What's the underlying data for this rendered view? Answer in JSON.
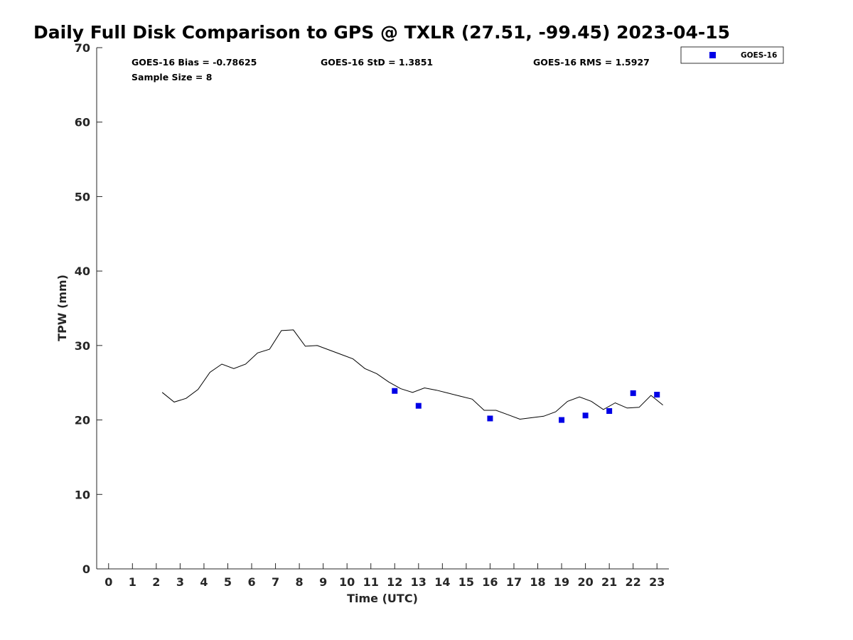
{
  "chart_data": {
    "type": "scatter",
    "title": "Daily Full Disk Comparison to GPS @ TXLR (27.51, -99.45) 2023-04-15",
    "xlabel": "Time (UTC)",
    "ylabel": "TPW (mm)",
    "xlim": [
      -0.5,
      23.5
    ],
    "ylim": [
      0,
      70
    ],
    "x_ticks": [
      0,
      1,
      2,
      3,
      4,
      5,
      6,
      7,
      8,
      9,
      10,
      11,
      12,
      13,
      14,
      15,
      16,
      17,
      18,
      19,
      20,
      21,
      22,
      23
    ],
    "x_tick_labels": [
      "0",
      "1",
      "2",
      "3",
      "4",
      "5",
      "6",
      "7",
      "8",
      "9",
      "10",
      "11",
      "12",
      "13",
      "14",
      "15",
      "16",
      "17",
      "18",
      "19",
      "20",
      "21",
      "22",
      "23"
    ],
    "y_ticks": [
      0,
      10,
      20,
      30,
      40,
      50,
      60,
      70
    ],
    "y_tick_labels": [
      "0",
      "10",
      "20",
      "30",
      "40",
      "50",
      "60",
      "70"
    ],
    "grid": false,
    "legend_position": "top-right, outside plot area",
    "series": [
      {
        "name": "",
        "kind": "line",
        "color": "#000000",
        "x": [
          2.25,
          2.75,
          3.25,
          3.75,
          4.25,
          4.75,
          5.25,
          5.75,
          6.25,
          6.75,
          7.25,
          7.75,
          8.25,
          8.75,
          9.25,
          9.75,
          10.25,
          10.75,
          11.25,
          11.75,
          12.25,
          12.75,
          13.25,
          13.75,
          14.25,
          14.75,
          15.25,
          15.75,
          16.25,
          16.75,
          17.25,
          17.75,
          18.25,
          18.75,
          19.25,
          19.75,
          20.25,
          20.75,
          21.25,
          21.75,
          22.25,
          22.75,
          23.25
        ],
        "y": [
          23.7,
          22.4,
          22.9,
          24.1,
          26.4,
          27.5,
          26.9,
          27.5,
          29.0,
          29.5,
          32.0,
          32.1,
          29.9,
          30.0,
          29.4,
          28.8,
          28.2,
          26.9,
          26.2,
          25.1,
          24.2,
          23.7,
          24.3,
          24.0,
          23.6,
          23.2,
          22.8,
          21.3,
          21.3,
          20.7,
          20.1,
          20.3,
          20.5,
          21.1,
          22.5,
          23.1,
          22.5,
          21.4,
          22.3,
          21.6,
          21.7,
          23.3,
          22.0
        ]
      },
      {
        "name": "GOES-16",
        "kind": "scatter",
        "marker": "square",
        "color": "#0000e6",
        "x": [
          12,
          13,
          16,
          19,
          20,
          21,
          22,
          23
        ],
        "y": [
          23.9,
          21.9,
          20.2,
          20.0,
          20.6,
          21.2,
          23.6,
          23.4
        ]
      }
    ],
    "annotations": {
      "bias": "GOES-16 Bias = -0.78625",
      "std": "GOES-16 StD = 1.3851",
      "rms": "GOES-16 RMS = 1.5927",
      "sample_size": "Sample Size = 8"
    },
    "legend_entries": [
      "GOES-16"
    ]
  }
}
